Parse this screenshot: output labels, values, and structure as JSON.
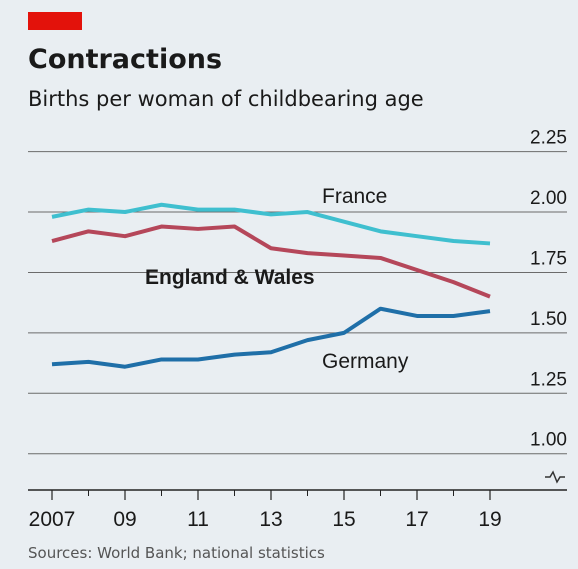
{
  "chart_data": {
    "type": "line",
    "title": "Contractions",
    "subtitle": "Births per woman of childbearing age",
    "source": "Sources: World Bank; national statistics",
    "x": [
      2007,
      2008,
      2009,
      2010,
      2011,
      2012,
      2013,
      2014,
      2015,
      2016,
      2017,
      2018,
      2019
    ],
    "series": [
      {
        "name": "France",
        "color": "#3fbfcf",
        "values": [
          1.98,
          2.01,
          2.0,
          2.03,
          2.01,
          2.01,
          1.99,
          2.0,
          1.96,
          1.92,
          1.9,
          1.88,
          1.87
        ]
      },
      {
        "name": "England & Wales",
        "color": "#b5475a",
        "values": [
          1.88,
          1.92,
          1.9,
          1.94,
          1.93,
          1.94,
          1.85,
          1.83,
          1.82,
          1.81,
          1.76,
          1.71,
          1.65
        ]
      },
      {
        "name": "Germany",
        "color": "#1f6fa8",
        "values": [
          1.37,
          1.38,
          1.36,
          1.39,
          1.39,
          1.41,
          1.42,
          1.47,
          1.5,
          1.6,
          1.57,
          1.57,
          1.59
        ]
      }
    ],
    "xlim": [
      2007,
      2019
    ],
    "xticks": [
      2007,
      {
        "value": 2009,
        "label": "09"
      },
      {
        "value": 2011,
        "label": "11"
      },
      {
        "value": 2013,
        "label": "13"
      },
      {
        "value": 2015,
        "label": "15"
      },
      {
        "value": 2017,
        "label": "17"
      },
      {
        "value": 2019,
        "label": "19"
      }
    ],
    "xminorticks": [
      2008,
      2010,
      2012,
      2014,
      2016,
      2018
    ],
    "ylim": [
      0.85,
      2.3
    ],
    "yticks": [
      {
        "value": 1,
        "label": "1.00"
      },
      {
        "value": 1.25,
        "label": "1.25"
      },
      {
        "value": 1.5,
        "label": "1.50"
      },
      {
        "value": 1.75,
        "label": "1.75"
      },
      {
        "value": 2,
        "label": "2.00"
      },
      {
        "value": 2.25,
        "label": "2.25"
      }
    ],
    "grid": true
  }
}
